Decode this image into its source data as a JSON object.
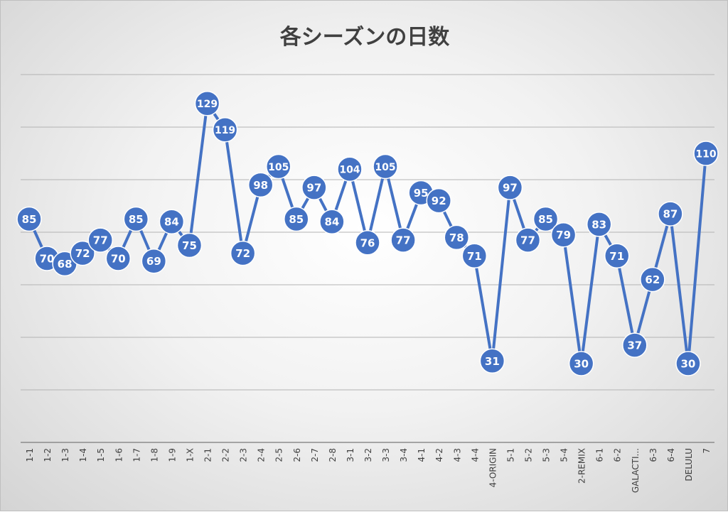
{
  "chart_data": {
    "type": "line",
    "title": "各シーズンの日数",
    "xlabel": "",
    "ylabel": "",
    "ylim": [
      0,
      140
    ],
    "yticks": [
      0,
      20,
      40,
      60,
      80,
      100,
      120,
      140
    ],
    "grid": true,
    "show_y_tick_labels": false,
    "series_color": "#4472c4",
    "categories": [
      "1-1",
      "1-2",
      "1-3",
      "1-4",
      "1-5",
      "1-6",
      "1-7",
      "1-8",
      "1-9",
      "1-X",
      "2-1",
      "2-2",
      "2-3",
      "2-4",
      "2-5",
      "2-6",
      "2-7",
      "2-8",
      "3-1",
      "3-2",
      "3-3",
      "3-4",
      "4-1",
      "4-2",
      "4-3",
      "4-4",
      "4-ORIGIN",
      "5-1",
      "5-2",
      "5-3",
      "5-4",
      "2-REMIX",
      "6-1",
      "6-2",
      "GALACTI...",
      "6-3",
      "6-4",
      "DELULU",
      "7"
    ],
    "series": [
      {
        "values": [
          85,
          70,
          68,
          72,
          77,
          70,
          85,
          69,
          84,
          75,
          129,
          119,
          72,
          98,
          105,
          85,
          97,
          84,
          104,
          76,
          105,
          77,
          95,
          92,
          78,
          71,
          31,
          97,
          77,
          85,
          79,
          30,
          83,
          71,
          37,
          62,
          87,
          30,
          110
        ]
      }
    ]
  }
}
